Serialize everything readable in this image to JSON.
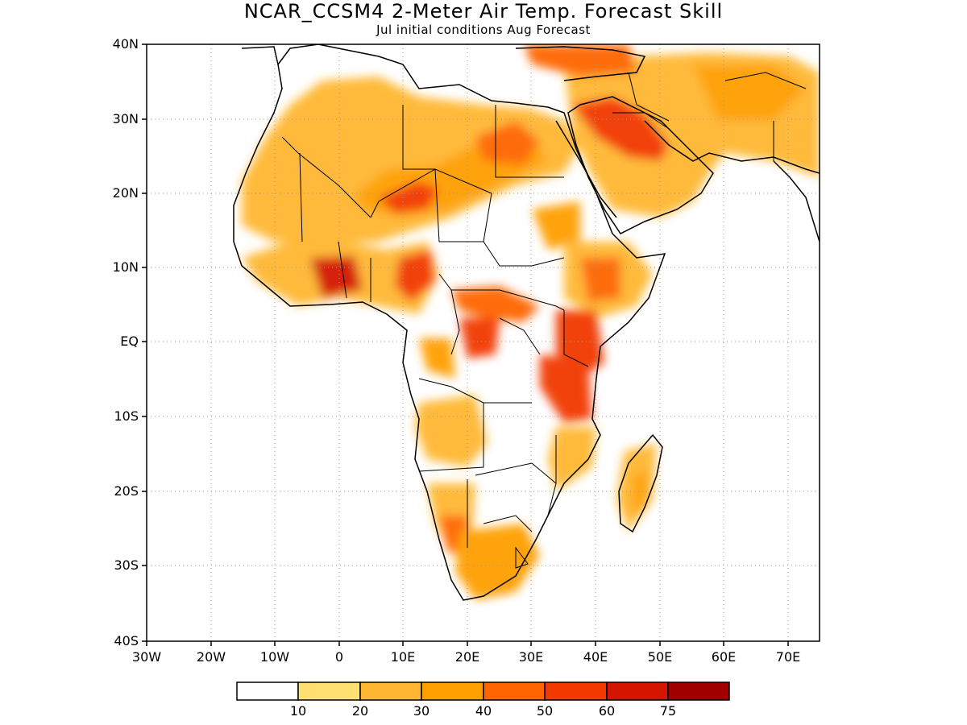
{
  "title": "NCAR_CCSM4 2-Meter Air Temp. Forecast Skill",
  "subtitle": "Jul initial conditions  Aug Forecast",
  "lat_labels": [
    "40N",
    "30N",
    "20N",
    "10N",
    "EQ",
    "10S",
    "20S",
    "30S",
    "40S"
  ],
  "lon_labels": [
    "30W",
    "20W",
    "10W",
    "0",
    "10E",
    "20E",
    "30E",
    "40E",
    "50E",
    "60E",
    "70E"
  ],
  "colorbar": {
    "colors": [
      "#ffffff",
      "#ffe070",
      "#ffb733",
      "#ff9f00",
      "#ff6500",
      "#f23900",
      "#d41500",
      "#a00000"
    ],
    "labels": [
      "10",
      "20",
      "30",
      "40",
      "50",
      "60",
      "75"
    ]
  }
}
